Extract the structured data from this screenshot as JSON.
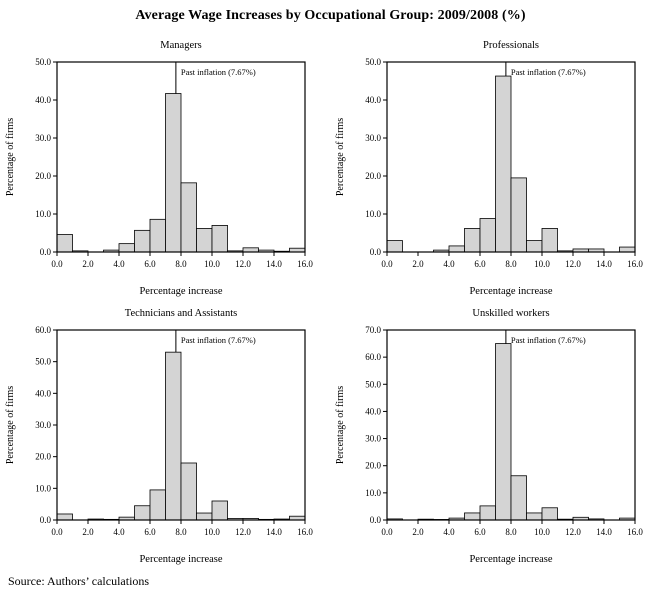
{
  "page": {
    "title": "Average Wage Increases by Occupational Group: 2009/2008 (%)",
    "source": "Source: Authors’ calculations"
  },
  "colors": {
    "bar_fill": "#d4d4d4",
    "bar_stroke": "#000000",
    "frame_stroke": "#000000",
    "text": "#000000",
    "annotation_line": "#000000"
  },
  "chart_data": [
    {
      "type": "bar",
      "title": "Managers",
      "xlabel": "Percentage increase",
      "ylabel": "Percentage of firms",
      "xlim": [
        0,
        16
      ],
      "ylim": [
        0,
        50
      ],
      "xtick_step": 2,
      "ytick_step": 10,
      "bin_start": 0,
      "bin_width": 1,
      "values": [
        4.6,
        0.3,
        0,
        0.5,
        2.2,
        5.7,
        8.6,
        41.7,
        18.2,
        6.2,
        7.0,
        0.3,
        1.1,
        0.5,
        0.2,
        1.0
      ],
      "annotation": {
        "label": "Past inflation (7.67%)",
        "x": 7.67
      },
      "grid": false,
      "legend": "none"
    },
    {
      "type": "bar",
      "title": "Professionals",
      "xlabel": "Percentage increase",
      "ylabel": "Percentage of firms",
      "xlim": [
        0,
        16
      ],
      "ylim": [
        0,
        50
      ],
      "xtick_step": 2,
      "ytick_step": 10,
      "bin_start": 0,
      "bin_width": 1,
      "values": [
        3.0,
        0,
        0,
        0.5,
        1.6,
        6.2,
        8.8,
        46.3,
        19.5,
        3.0,
        6.2,
        0.3,
        0.8,
        0.8,
        0,
        1.3
      ],
      "annotation": {
        "label": "Past inflation (7.67%)",
        "x": 7.67
      },
      "grid": false,
      "legend": "none"
    },
    {
      "type": "bar",
      "title": "Technicians and Assistants",
      "xlabel": "Percentage increase",
      "ylabel": "Percentage of firms",
      "xlim": [
        0,
        16
      ],
      "ylim": [
        0,
        60
      ],
      "xtick_step": 2,
      "ytick_step": 10,
      "bin_start": 0,
      "bin_width": 1,
      "values": [
        1.9,
        0,
        0.3,
        0.2,
        0.9,
        4.5,
        9.5,
        53.0,
        18.0,
        2.2,
        6.0,
        0.5,
        0.5,
        0.2,
        0.3,
        1.2
      ],
      "annotation": {
        "label": "Past inflation (7.67%)",
        "x": 7.67
      },
      "grid": false,
      "legend": "none"
    },
    {
      "type": "bar",
      "title": "Unskilled workers",
      "xlabel": "Percentage increase",
      "ylabel": "Percentage of firms",
      "xlim": [
        0,
        16
      ],
      "ylim": [
        0,
        70
      ],
      "xtick_step": 2,
      "ytick_step": 10,
      "bin_start": 0,
      "bin_width": 1,
      "values": [
        0.4,
        0,
        0.3,
        0.2,
        0.7,
        2.6,
        5.2,
        65.0,
        16.3,
        2.6,
        4.5,
        0.3,
        1.0,
        0.4,
        0,
        0.7
      ],
      "annotation": {
        "label": "Past inflation (7.67%)",
        "x": 7.67
      },
      "grid": false,
      "legend": "none"
    }
  ]
}
